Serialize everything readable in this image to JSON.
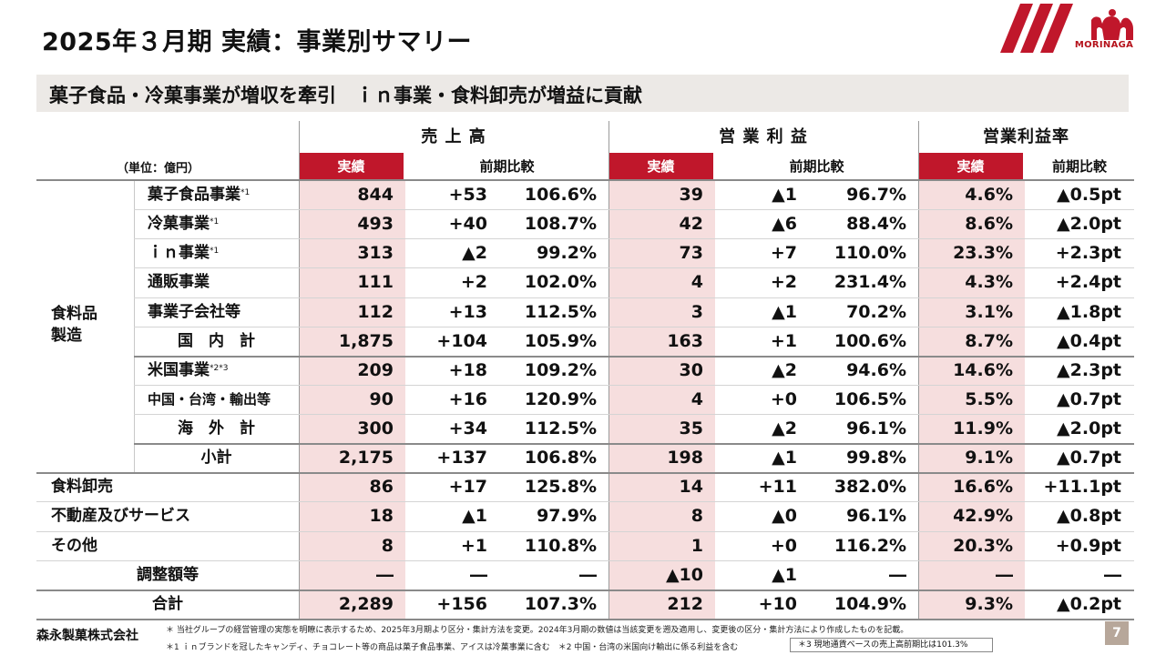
{
  "title": "2025年３月期 実績：事業別サマリー",
  "logo_text": "MORINAGA",
  "brand_color": "#c0172b",
  "banner": "菓子食品・冷菓事業が増収を牽引　ｉｎ事業・食料卸売が増益に貢献",
  "table": {
    "unit_label": "（単位：億円）",
    "group_headers": [
      "売 上 高",
      "営 業 利 益",
      "営業利益率"
    ],
    "sub_headers": [
      "実績",
      "前期比較",
      "実績",
      "前期比較",
      "実績",
      "前期比較"
    ],
    "category_label": "食料品\n製造",
    "rows": [
      {
        "label": "菓子食品事業",
        "mark": "*1",
        "cells": [
          "844",
          "+53",
          "106.6%",
          "39",
          "▲1",
          "96.7%",
          "4.6%",
          "▲0.5pt"
        ]
      },
      {
        "label": "冷菓事業",
        "mark": "*1",
        "cells": [
          "493",
          "+40",
          "108.7%",
          "42",
          "▲6",
          "88.4%",
          "8.6%",
          "▲2.0pt"
        ]
      },
      {
        "label": "ｉｎ事業",
        "mark": "*1",
        "cells": [
          "313",
          "▲2",
          "99.2%",
          "73",
          "+7",
          "110.0%",
          "23.3%",
          "+2.3pt"
        ]
      },
      {
        "label": "通販事業",
        "mark": "",
        "cells": [
          "111",
          "+2",
          "102.0%",
          "4",
          "+2",
          "231.4%",
          "4.3%",
          "+2.4pt"
        ]
      },
      {
        "label": "事業子会社等",
        "mark": "",
        "cells": [
          "112",
          "+13",
          "112.5%",
          "3",
          "▲1",
          "70.2%",
          "3.1%",
          "▲1.8pt"
        ]
      },
      {
        "label": "国　内　計",
        "mark": "",
        "cells": [
          "1,875",
          "+104",
          "105.9%",
          "163",
          "+1",
          "100.6%",
          "8.7%",
          "▲0.4pt"
        ]
      },
      {
        "label": "米国事業",
        "mark": "*2*3",
        "cells": [
          "209",
          "+18",
          "109.2%",
          "30",
          "▲2",
          "94.6%",
          "14.6%",
          "▲2.3pt"
        ]
      },
      {
        "label": "中国・台湾・輸出等",
        "mark": "",
        "cells": [
          "90",
          "+16",
          "120.9%",
          "4",
          "+0",
          "106.5%",
          "5.5%",
          "▲0.7pt"
        ]
      },
      {
        "label": "海　外　計",
        "mark": "",
        "cells": [
          "300",
          "+34",
          "112.5%",
          "35",
          "▲2",
          "96.1%",
          "11.9%",
          "▲2.0pt"
        ]
      },
      {
        "label": "小計",
        "mark": "",
        "cells": [
          "2,175",
          "+137",
          "106.8%",
          "198",
          "▲1",
          "99.8%",
          "9.1%",
          "▲0.7pt"
        ]
      },
      {
        "label": "食料卸売",
        "mark": "",
        "cells": [
          "86",
          "+17",
          "125.8%",
          "14",
          "+11",
          "382.0%",
          "16.6%",
          "+11.1pt"
        ]
      },
      {
        "label": "不動産及びサービス",
        "mark": "",
        "cells": [
          "18",
          "▲1",
          "97.9%",
          "8",
          "▲0",
          "96.1%",
          "42.9%",
          "▲0.8pt"
        ]
      },
      {
        "label": "その他",
        "mark": "",
        "cells": [
          "8",
          "+1",
          "110.8%",
          "1",
          "+0",
          "116.2%",
          "20.3%",
          "+0.9pt"
        ]
      },
      {
        "label": "調整額等",
        "mark": "",
        "cells": [
          "―",
          "―",
          "―",
          "▲10",
          "▲1",
          "―",
          "―",
          "―"
        ]
      },
      {
        "label": "合計",
        "mark": "",
        "cells": [
          "2,289",
          "+156",
          "107.3%",
          "212",
          "+10",
          "104.9%",
          "9.3%",
          "▲0.2pt"
        ]
      }
    ]
  },
  "company_name": "森永製菓株式会社",
  "footnotes": {
    "line1": "＊ 当社グループの経営管理の実態を明瞭に表示するため、2025年3月期より区分・集計方法を変更。2024年3月期の数値は当該変更を遡及適用し、変更後の区分・集計方法により作成したものを記載。",
    "line2": "＊1 ｉｎブランドを冠したキャンディ、チョコレート等の商品は菓子食品事業、アイスは冷菓事業に含む　＊2 中国・台湾の米国向け輸出に係る利益を含む",
    "line3": "＊3 現地通貨ベースの売上高前期比は101.3%"
  },
  "page_number": "7"
}
